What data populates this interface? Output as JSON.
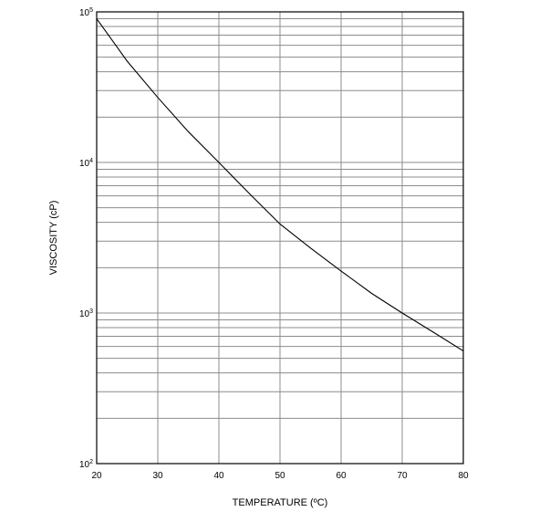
{
  "chart_data": {
    "type": "line",
    "scale_y": "log",
    "xlabel": "TEMPERATURE (ºC)",
    "ylabel": "VISCOSITY (cP)",
    "xlim": [
      20,
      80
    ],
    "ylim": [
      100,
      100000
    ],
    "x_ticks": [
      20,
      30,
      40,
      50,
      60,
      70,
      80
    ],
    "x_tick_labels": [
      "20",
      "30",
      "40",
      "50",
      "60",
      "70",
      "80"
    ],
    "y_ticks": [
      100,
      1000,
      10000,
      100000
    ],
    "y_tick_labels": [
      {
        "base": "10",
        "exp": "2"
      },
      {
        "base": "10",
        "exp": "3"
      },
      {
        "base": "10",
        "exp": "4"
      },
      {
        "base": "10",
        "exp": "5"
      }
    ],
    "grid": true,
    "series": [
      {
        "x": [
          20,
          25,
          30,
          35,
          40,
          45,
          50,
          55,
          60,
          65,
          70,
          75,
          80
        ],
        "y": [
          90000,
          47000,
          27000,
          16000,
          10000,
          6200,
          3900,
          2700,
          1900,
          1350,
          1000,
          750,
          560
        ]
      }
    ]
  }
}
